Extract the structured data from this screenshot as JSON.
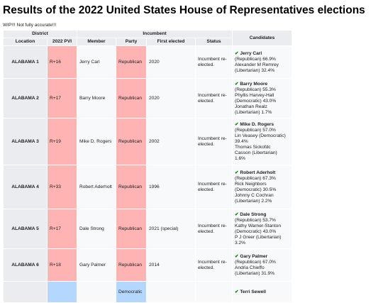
{
  "title": "Results of the 2022 United States House of Representatives elections",
  "note": "WIP!!! Not fully accurate!!!",
  "header": {
    "district": "District",
    "incumbent": "Incumbent",
    "location": "Location",
    "pvi": "2022 PVI",
    "member": "Member",
    "party": "Party",
    "first_elected": "First elected",
    "status": "Status",
    "candidates": "Candidates"
  },
  "colors": {
    "republican": "#ffb3b3",
    "democratic": "#b3d7ff",
    "check": "#008000"
  },
  "rows": [
    {
      "location": "ALABAMA 1",
      "pvi": "R+16",
      "member": "Jerry Carl",
      "party": "Republican",
      "first_elected": "2020",
      "status": "Incumbent re-elected.",
      "winner": "Jerry Carl",
      "lines": [
        "(Republican) 66.9%",
        "Alexander M Remrey",
        "(Libertarian) 32.4%"
      ]
    },
    {
      "location": "ALABAMA 2",
      "pvi": "R+17",
      "member": "Barry Moore",
      "party": "Republican",
      "first_elected": "2020",
      "status": "Incumbent re-elected.",
      "winner": "Barry Moore",
      "lines": [
        "(Republican) 55.3%",
        "Phyllis Harvey-Hall",
        "(Democratic) 43.0%",
        "Jonathan Realz",
        "(Libertarian) 1.7%"
      ]
    },
    {
      "location": "ALABAMA 3",
      "pvi": "R+19",
      "member": "Mike D. Rogers",
      "party": "Republican",
      "first_elected": "2002",
      "status": "Incumbent re-elected.",
      "winner": "Mike D. Rogers",
      "lines": [
        "(Republican) 57.0%",
        "Lin Veasey (Democratic)",
        "39.4%",
        "Thomas Sickofdc",
        "Casson (Libertarian)",
        "1.6%"
      ]
    },
    {
      "location": "ALABAMA 4",
      "pvi": "R+33",
      "member": "Robert Aderholt",
      "party": "Republican",
      "first_elected": "1996",
      "status": "Incumbent re-elected.",
      "winner": "Robert Aderholt",
      "lines": [
        "(Republican) 67.3%",
        "Rick Neighbors",
        "(Democratic) 30.5%",
        "Johnny C Cochran",
        "(Libertarian) 2.2%"
      ]
    },
    {
      "location": "ALABAMA 5",
      "pvi": "R+17",
      "member": "Dale Strong",
      "party": "Republican",
      "first_elected": "2021 (special)",
      "status": "Incumbent re-elected.",
      "winner": "Dale Strong",
      "lines": [
        "(Republican) 53.7%",
        "Kathy Warner-Stanton",
        "(Democratic) 43.0%",
        "P J Greer (Libertarian)",
        "3.2%"
      ]
    },
    {
      "location": "ALABAMA 6",
      "pvi": "R+18",
      "member": "Gary Palmer",
      "party": "Republican",
      "first_elected": "2014",
      "status": "Incumbent re-elected.",
      "winner": "Gary Palmer",
      "lines": [
        "(Republican) 67.0%",
        "Andria Chieffo",
        "(Libertarian) 31.9%"
      ]
    },
    {
      "location": "",
      "pvi": "",
      "member": "",
      "party": "Democratic",
      "first_elected": "",
      "status": "",
      "winner": "Terri Sewell",
      "lines": []
    }
  ]
}
